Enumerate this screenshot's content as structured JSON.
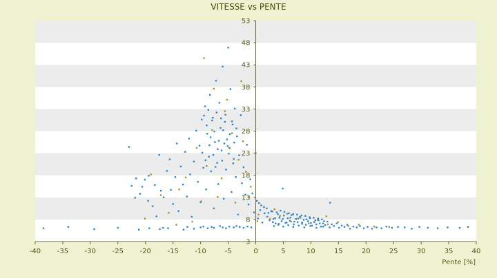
{
  "chart_data": {
    "type": "scatter",
    "title": "VITESSE vs PENTE",
    "xlabel": "Pente [%]",
    "ylabel": "",
    "xlim": [
      -40,
      40
    ],
    "ylim": [
      3,
      53
    ],
    "x_ticks": [
      -40,
      -35,
      -30,
      -25,
      -20,
      -15,
      -10,
      -5,
      0,
      5,
      10,
      15,
      20,
      25,
      30,
      35,
      40
    ],
    "y_ticks": [
      3,
      8,
      13,
      18,
      23,
      28,
      33,
      38,
      43,
      48,
      53
    ],
    "grid": "horizontal bands",
    "colors": {
      "page_bg": "#eef2d0",
      "plot_band_light": "#ffffff",
      "plot_band_dark": "#ececec",
      "series_blue": "#2e86d4",
      "series_olive": "#9a9a30",
      "axis": "#6a6a30",
      "text": "#5a5a10"
    },
    "series": [
      {
        "points": [
          [
            -38.5,
            6
          ],
          [
            -34,
            6.3
          ],
          [
            -29.3,
            5.8
          ],
          [
            -25,
            6.1
          ],
          [
            -21.2,
            5.7
          ],
          [
            -19.3,
            6
          ],
          [
            -17.4,
            5.8
          ],
          [
            -16.8,
            6.1
          ],
          [
            -15.9,
            6
          ],
          [
            -13.1,
            5.7
          ],
          [
            -12.4,
            6.3
          ],
          [
            -11.2,
            5.9
          ],
          [
            -10,
            6.2
          ],
          [
            -9.5,
            6.4
          ],
          [
            -8.7,
            6
          ],
          [
            -8,
            6.3
          ],
          [
            -7.6,
            6.1
          ],
          [
            -6.5,
            6.5
          ],
          [
            -6,
            6.2
          ],
          [
            -5.4,
            6
          ],
          [
            -4.8,
            6.4
          ],
          [
            -4,
            6.2
          ],
          [
            -3.5,
            6.5
          ],
          [
            -2.9,
            6.3
          ],
          [
            -2.2,
            6.1
          ],
          [
            -1.5,
            6.4
          ],
          [
            -0.8,
            6.2
          ],
          [
            -23,
            24.4
          ],
          [
            -22.5,
            15.6
          ],
          [
            -21.7,
            17.3
          ],
          [
            -21.9,
            12.9
          ],
          [
            -21,
            13.8
          ],
          [
            -20.6,
            15.4
          ],
          [
            -20.1,
            17
          ],
          [
            -19.5,
            12.2
          ],
          [
            -19.4,
            17.9
          ],
          [
            -18.7,
            11
          ],
          [
            -18.3,
            15.8
          ],
          [
            -18,
            8.7
          ],
          [
            -17.5,
            22.6
          ],
          [
            -17.2,
            14.5
          ],
          [
            -16.7,
            13
          ],
          [
            -16.1,
            19
          ],
          [
            -15.6,
            21.6
          ],
          [
            -15.4,
            14.7
          ],
          [
            -15,
            11.5
          ],
          [
            -14.6,
            17.6
          ],
          [
            -14.3,
            25.2
          ],
          [
            -14,
            9.9
          ],
          [
            -13.6,
            20
          ],
          [
            -13.2,
            15.9
          ],
          [
            -12.8,
            23.3
          ],
          [
            -12.5,
            13.2
          ],
          [
            -12.1,
            26.3
          ],
          [
            -11.9,
            18.2
          ],
          [
            -11.6,
            8.6
          ],
          [
            -11.2,
            21.1
          ],
          [
            -10.8,
            28.1
          ],
          [
            -10.5,
            16.5
          ],
          [
            -10.2,
            24.7
          ],
          [
            -10,
            11.9
          ],
          [
            -9.8,
            30.6
          ],
          [
            -9.5,
            19.7
          ],
          [
            -9.2,
            33.6
          ],
          [
            -9,
            14.8
          ],
          [
            -8.8,
            27.4
          ],
          [
            -8.5,
            22.2
          ],
          [
            -8.3,
            36.2
          ],
          [
            -8.1,
            18.9
          ],
          [
            -7.8,
            31
          ],
          [
            -7.6,
            10.5
          ],
          [
            -7.4,
            25.5
          ],
          [
            -7.2,
            39.4
          ],
          [
            -7,
            20.8
          ],
          [
            -6.8,
            16
          ],
          [
            -6.6,
            34.4
          ],
          [
            -6.4,
            28.7
          ],
          [
            -6.2,
            23.6
          ],
          [
            -6,
            42.6
          ],
          [
            -5.8,
            12.7
          ],
          [
            -5.6,
            30.1
          ],
          [
            -5.4,
            19.3
          ],
          [
            -5.2,
            26.1
          ],
          [
            -5,
            46.9
          ],
          [
            -4.8,
            24.2
          ],
          [
            -4.6,
            37.5
          ],
          [
            -4.4,
            14.2
          ],
          [
            -4.2,
            29.5
          ],
          [
            -4,
            21.7
          ],
          [
            -3.8,
            33.1
          ],
          [
            -3.6,
            17.6
          ],
          [
            -3.4,
            26.8
          ],
          [
            -3.2,
            9.1
          ],
          [
            -3,
            22.5
          ],
          [
            -2.7,
            31.6
          ],
          [
            -2.5,
            16.2
          ],
          [
            -2.2,
            19.8
          ],
          [
            -1.9,
            13.6
          ],
          [
            -1.6,
            24.9
          ],
          [
            -1.3,
            11.4
          ],
          [
            -1,
            17.1
          ],
          [
            -0.6,
            13.9
          ],
          [
            -0.3,
            9.6
          ],
          [
            -9.4,
            31.5
          ],
          [
            -8.9,
            29.3
          ],
          [
            -8.6,
            32.8
          ],
          [
            -8.2,
            26.6
          ],
          [
            -7.9,
            30.4
          ],
          [
            -7.5,
            27.9
          ],
          [
            -7.1,
            32.2
          ],
          [
            -6.7,
            25.8
          ],
          [
            -6.3,
            30.9
          ],
          [
            -5.9,
            28.2
          ],
          [
            -5.5,
            31.7
          ],
          [
            -5.1,
            24.6
          ],
          [
            -4.7,
            27.3
          ],
          [
            -4.3,
            30.2
          ],
          [
            -3.9,
            25.4
          ],
          [
            -3.5,
            28.6
          ],
          [
            -9.7,
            23.1
          ],
          [
            -9.1,
            21.4
          ],
          [
            -8.4,
            24.8
          ],
          [
            -7.7,
            22.6
          ],
          [
            -7.3,
            19.9
          ],
          [
            -6.9,
            23.9
          ],
          [
            -6.1,
            21.3
          ],
          [
            -5.7,
            25.2
          ],
          [
            -4.9,
            22.9
          ],
          [
            -4.1,
            20.7
          ],
          [
            0.4,
            8.2
          ],
          [
            0.8,
            10.1
          ],
          [
            1.2,
            7.3
          ],
          [
            1.6,
            9.4
          ],
          [
            2.1,
            8.6
          ],
          [
            2.5,
            7.8
          ],
          [
            2.8,
            9.9
          ],
          [
            3.2,
            8.1
          ],
          [
            3.6,
            7.1
          ],
          [
            4,
            9.2
          ],
          [
            4.3,
            8.4
          ],
          [
            4.7,
            7.6
          ],
          [
            5.1,
            8.9
          ],
          [
            5.4,
            7.2
          ],
          [
            5.8,
            8.3
          ],
          [
            6.2,
            7.7
          ],
          [
            6.5,
            9
          ],
          [
            6.9,
            6.9
          ],
          [
            7.3,
            8.1
          ],
          [
            7.6,
            7.4
          ],
          [
            8,
            8.6
          ],
          [
            8.4,
            7
          ],
          [
            8.7,
            7.9
          ],
          [
            9.1,
            6.8
          ],
          [
            9.5,
            7.6
          ],
          [
            9.8,
            8.3
          ],
          [
            10.2,
            6.6
          ],
          [
            10.6,
            7.4
          ],
          [
            11,
            6.9
          ],
          [
            11.4,
            7.8
          ],
          [
            11.8,
            6.4
          ],
          [
            12.2,
            7.1
          ],
          [
            12.6,
            6.7
          ],
          [
            13,
            7.5
          ],
          [
            13.4,
            6.2
          ],
          [
            13.8,
            6.9
          ],
          [
            14.2,
            6.5
          ],
          [
            14.7,
            7.1
          ],
          [
            15.1,
            6.1
          ],
          [
            15.6,
            6.6
          ],
          [
            16.1,
            6.3
          ],
          [
            16.6,
            6.8
          ],
          [
            17.1,
            5.9
          ],
          [
            17.7,
            6.4
          ],
          [
            18.3,
            6.2
          ],
          [
            18.9,
            6.5
          ],
          [
            19.6,
            6
          ],
          [
            20.3,
            6.3
          ],
          [
            21.1,
            5.9
          ],
          [
            21.9,
            6.2
          ],
          [
            22.8,
            6
          ],
          [
            23.7,
            6.4
          ],
          [
            24.7,
            6.1
          ],
          [
            25.8,
            6.3
          ],
          [
            27,
            6.2
          ],
          [
            28.3,
            5.9
          ],
          [
            29.7,
            6.3
          ],
          [
            31.2,
            6.1
          ],
          [
            33,
            6
          ],
          [
            34.8,
            6.2
          ],
          [
            37,
            6.1
          ],
          [
            38.5,
            6.3
          ],
          [
            2.3,
            9.5
          ],
          [
            3,
            9.8
          ],
          [
            3.8,
            9.6
          ],
          [
            4.5,
            10
          ],
          [
            5.2,
            9.7
          ],
          [
            6,
            9.4
          ],
          [
            6.8,
            9.2
          ],
          [
            7.5,
            9.1
          ],
          [
            8.3,
            8.9
          ],
          [
            9,
            8.8
          ],
          [
            9.8,
            8.5
          ],
          [
            10.5,
            8.4
          ],
          [
            11.3,
            8.2
          ],
          [
            12,
            8
          ],
          [
            4.9,
            15
          ],
          [
            13.5,
            11.8
          ],
          [
            0.2,
            12.2
          ],
          [
            0.6,
            11.7
          ],
          [
            1,
            11.2
          ],
          [
            1.5,
            10.8
          ],
          [
            2,
            10.5
          ],
          [
            3.1,
            7.4
          ],
          [
            3.5,
            8.3
          ],
          [
            4.2,
            7
          ],
          [
            4.9,
            8.1
          ],
          [
            5.6,
            7.3
          ],
          [
            6.3,
            8.4
          ],
          [
            7,
            7.5
          ],
          [
            7.7,
            8.2
          ],
          [
            8.4,
            7.3
          ],
          [
            9.2,
            8
          ],
          [
            10,
            7.2
          ],
          [
            10.8,
            7.8
          ],
          [
            11.6,
            7.1
          ],
          [
            12.4,
            7.6
          ],
          [
            3.3,
            6.5
          ],
          [
            4.1,
            6.8
          ],
          [
            5,
            6.4
          ],
          [
            5.9,
            6.7
          ],
          [
            6.8,
            6.3
          ],
          [
            7.8,
            6.6
          ],
          [
            8.8,
            6.2
          ],
          [
            9.9,
            6.5
          ],
          [
            11,
            6.1
          ],
          [
            12.2,
            6.4
          ]
        ]
      },
      {
        "points": [
          [
            -9.4,
            44.5
          ],
          [
            -7.6,
            37.6
          ],
          [
            -5.2,
            35.1
          ],
          [
            -2.6,
            39.3
          ],
          [
            -4.3,
            27.5
          ],
          [
            -3.1,
            21.5
          ],
          [
            -12.7,
            17.5
          ],
          [
            -10.7,
            24.2
          ],
          [
            -8.9,
            20.1
          ],
          [
            -15.8,
            9.5
          ],
          [
            -6.9,
            13.1
          ],
          [
            -3.7,
            11.8
          ],
          [
            -1.8,
            18.8
          ],
          [
            -0.9,
            15.4
          ],
          [
            -14.4,
            6.8
          ],
          [
            -11.5,
            7.5
          ],
          [
            0,
            23
          ],
          [
            0.3,
            7.6
          ],
          [
            0.5,
            9.1
          ],
          [
            -20.1,
            8.2
          ],
          [
            -17.2,
            13.5
          ],
          [
            -5.6,
            32.5
          ],
          [
            -7.9,
            28.2
          ],
          [
            -2.3,
            25.7
          ],
          [
            -19,
            18.2
          ],
          [
            -6.2,
            17.3
          ],
          [
            -4.7,
            24.1
          ],
          [
            -9.9,
            12.1
          ],
          [
            -13.9,
            14.8
          ],
          [
            -1.2,
            13.1
          ],
          [
            2.6,
            8.1
          ],
          [
            4.4,
            8.8
          ],
          [
            6.4,
            7.5
          ],
          [
            8.1,
            8.4
          ],
          [
            9.6,
            7.1
          ],
          [
            11.2,
            7.9
          ],
          [
            13.1,
            6.9
          ],
          [
            14.9,
            7.4
          ],
          [
            16.8,
            6.5
          ],
          [
            18.7,
            6.8
          ],
          [
            21.5,
            6.4
          ],
          [
            24.2,
            6.3
          ],
          [
            12.8,
            8.7
          ],
          [
            5.7,
            9.3
          ],
          [
            3.4,
            10.3
          ]
        ]
      }
    ]
  }
}
